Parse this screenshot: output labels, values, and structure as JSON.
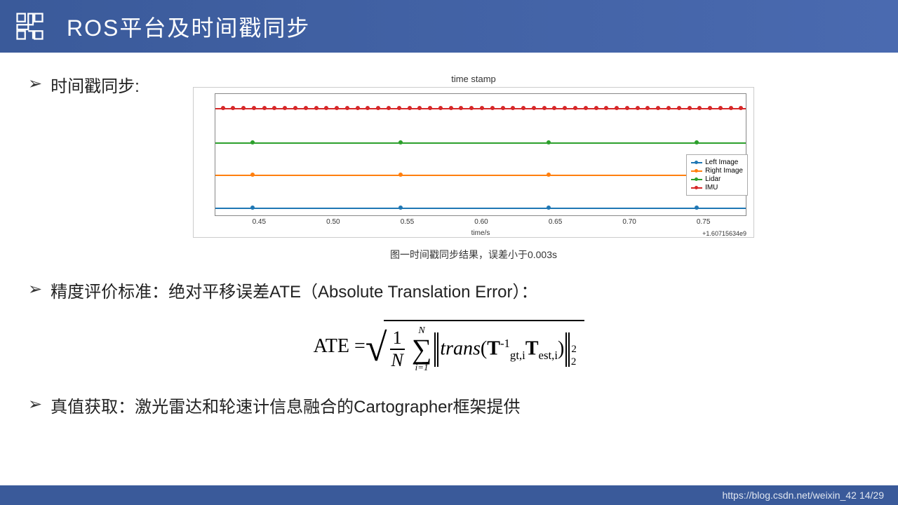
{
  "header": {
    "title": "ROS平台及时间戳同步"
  },
  "bullets": {
    "b1": "时间戳同步:",
    "b2": "精度评价标准：绝对平移误差ATE（Absolute Translation Error）：",
    "b3": "真值获取：激光雷达和轮速计信息融合的Cartographer框架提供"
  },
  "chart": {
    "title": "time stamp",
    "xlabel": "time/s",
    "xoffset": "+1.60715634e9",
    "xlim": [
      0.42,
      0.78
    ],
    "ylim": [
      0,
      4
    ],
    "xticks": [
      {
        "pos": 0.45,
        "label": "0.45"
      },
      {
        "pos": 0.5,
        "label": "0.50"
      },
      {
        "pos": 0.55,
        "label": "0.55"
      },
      {
        "pos": 0.6,
        "label": "0.60"
      },
      {
        "pos": 0.65,
        "label": "0.65"
      },
      {
        "pos": 0.7,
        "label": "0.70"
      },
      {
        "pos": 0.75,
        "label": "0.75"
      }
    ],
    "series": [
      {
        "name": "Left Image",
        "color": "#1f77b4",
        "y": 0.35,
        "x": [
          0.445,
          0.545,
          0.645,
          0.745
        ]
      },
      {
        "name": "Right Image",
        "color": "#ff7f0e",
        "y": 1.4,
        "x": [
          0.445,
          0.545,
          0.645,
          0.745
        ]
      },
      {
        "name": "Lidar",
        "color": "#2ca02c",
        "y": 2.45,
        "x": [
          0.445,
          0.545,
          0.645,
          0.745
        ]
      },
      {
        "name": "IMU",
        "color": "#d62728",
        "y": 3.55,
        "x": [
          0.425,
          0.432,
          0.439,
          0.446,
          0.453,
          0.46,
          0.467,
          0.474,
          0.481,
          0.488,
          0.495,
          0.502,
          0.509,
          0.516,
          0.523,
          0.53,
          0.537,
          0.544,
          0.551,
          0.558,
          0.565,
          0.572,
          0.579,
          0.586,
          0.593,
          0.6,
          0.607,
          0.614,
          0.621,
          0.628,
          0.635,
          0.642,
          0.649,
          0.656,
          0.663,
          0.67,
          0.677,
          0.684,
          0.691,
          0.698,
          0.705,
          0.712,
          0.719,
          0.726,
          0.733,
          0.74,
          0.747,
          0.754,
          0.761,
          0.768,
          0.775
        ]
      }
    ],
    "caption": "图一时间戳同步结果，误差小于0.003s",
    "legend_items": [
      "Left Image",
      "Right Image",
      "Lidar",
      "IMU"
    ],
    "background_color": "#ffffff",
    "border_color": "#888888",
    "marker_size": 6
  },
  "formula": {
    "lhs": "ATE =",
    "frac_num": "1",
    "frac_den": "N",
    "sum_top": "N",
    "sum_bot": "i=1",
    "trans": "trans",
    "T1": "T",
    "T1_sub": "gt,i",
    "T1_sup": "-1",
    "T2": "T",
    "T2_sub": "est,i",
    "norm_sup": "2",
    "norm_sub": "2"
  },
  "footer": {
    "url": "https://blog.csdn.net/weixin_42",
    "page": "14/29"
  }
}
